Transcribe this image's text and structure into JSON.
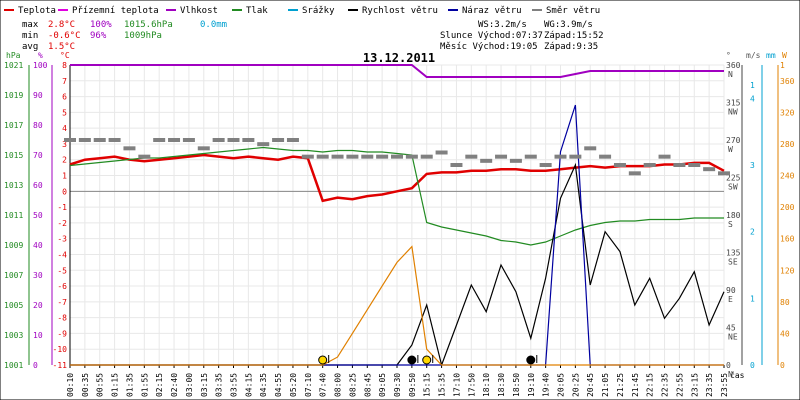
{
  "chart_data": {
    "type": "line",
    "title": "13.12.2011",
    "legend": [
      {
        "label": "Teplota",
        "color": "#e00000"
      },
      {
        "label": "Přízemní teplota",
        "color": "#e000e0"
      },
      {
        "label": "Vlhkost",
        "color": "#a000c0"
      },
      {
        "label": "Tlak",
        "color": "#228b22"
      },
      {
        "label": "Srážky",
        "color": "#00a0d0"
      },
      {
        "label": "Rychlost větru",
        "color": "#000000"
      },
      {
        "label": "Náraz větru",
        "color": "#0000a0"
      },
      {
        "label": "Směr větru",
        "color": "#808080"
      }
    ],
    "stats": {
      "max_label": "max",
      "max_temp": "2.8°C",
      "max_hum": "100%",
      "max_press": "1015.6hPa",
      "max_rain": "0.0mm",
      "min_label": "min",
      "min_temp": "-0.6°C",
      "min_hum": "96%",
      "min_press": "1009hPa",
      "avg_label": "avg",
      "avg_temp": "1.5°C",
      "ws": "WS:3.2m/s",
      "wg": "WG:3.9m/s",
      "sun": "Slunce Východ:07:37",
      "sun_set": "Západ:15:52",
      "moon": "Měsíc  Východ:19:05",
      "moon_set": "Západ:9:35"
    },
    "axes": {
      "hpa_unit": "hPa",
      "hum_unit": "%",
      "temp_unit": "°C",
      "dir_unit": "°",
      "wind_unit": "m/s",
      "rain_unit": "mm",
      "rain2_unit": "W",
      "x_unit": "čas",
      "pressure_ticks": [
        "1021",
        "1019",
        "1017",
        "1015",
        "1013",
        "1011",
        "1009",
        "1007",
        "1005",
        "1003",
        "1001"
      ],
      "humidity_ticks": [
        "100",
        "90",
        "80",
        "70",
        "60",
        "50",
        "40",
        "30",
        "20",
        "10",
        "0"
      ],
      "temp_ticks": [
        "8",
        "7",
        "6",
        "5",
        "4",
        "3",
        "2",
        "1",
        "0",
        "-1",
        "-2",
        "-3",
        "-4",
        "-5",
        "-6",
        "-7",
        "-8",
        "-9",
        "-10",
        "-11"
      ],
      "dir_ticks": [
        "360",
        "315",
        "270",
        "225",
        "180",
        "135",
        "90",
        "45",
        "0"
      ],
      "dir_letters": [
        "N",
        "NW",
        "W",
        "SW",
        "S",
        "SE",
        "E",
        "NE",
        "N"
      ],
      "wind_ticks": [
        "1",
        "4",
        "3",
        "2",
        "1",
        "0"
      ],
      "rain_ticks": [
        "1",
        "360",
        "320",
        "280",
        "240",
        "200",
        "160",
        "120",
        "80",
        "40",
        "0"
      ],
      "x_ticks": [
        "00:10",
        "00:35",
        "00:55",
        "01:15",
        "01:35",
        "01:55",
        "02:15",
        "02:40",
        "03:00",
        "03:15",
        "03:35",
        "03:55",
        "04:15",
        "04:35",
        "04:55",
        "05:20",
        "07:10",
        "07:40",
        "08:00",
        "08:25",
        "08:45",
        "09:05",
        "09:30",
        "09:50",
        "15:15",
        "15:35",
        "17:10",
        "17:50",
        "18:10",
        "18:30",
        "18:50",
        "19:10",
        "19:40",
        "20:05",
        "20:25",
        "20:45",
        "21:05",
        "21:25",
        "21:45",
        "22:15",
        "22:35",
        "22:55",
        "23:15",
        "23:35",
        "23:55"
      ]
    },
    "series": [
      {
        "name": "Teplota",
        "unit": "°C",
        "values": [
          1.7,
          2.0,
          2.1,
          2.2,
          2.0,
          1.9,
          2.0,
          2.1,
          2.2,
          2.3,
          2.2,
          2.1,
          2.2,
          2.1,
          2.0,
          2.2,
          2.1,
          -0.6,
          -0.4,
          -0.5,
          -0.3,
          -0.2,
          0.0,
          0.2,
          1.1,
          1.2,
          1.2,
          1.3,
          1.3,
          1.4,
          1.4,
          1.3,
          1.3,
          1.4,
          1.5,
          1.6,
          1.5,
          1.6,
          1.6,
          1.6,
          1.7,
          1.7,
          1.8,
          1.8,
          1.3
        ]
      },
      {
        "name": "Vlhkost",
        "unit": "%",
        "values": [
          100,
          100,
          100,
          100,
          100,
          100,
          100,
          100,
          100,
          100,
          100,
          100,
          100,
          100,
          100,
          100,
          100,
          100,
          100,
          100,
          100,
          100,
          100,
          100,
          96,
          96,
          96,
          96,
          96,
          96,
          96,
          96,
          96,
          96,
          97,
          98,
          98,
          98,
          98,
          98,
          98,
          98,
          98,
          98,
          98
        ]
      },
      {
        "name": "Tlak",
        "unit": "hPa",
        "values": [
          1014.3,
          1014.4,
          1014.5,
          1014.6,
          1014.7,
          1014.8,
          1014.8,
          1014.9,
          1015.0,
          1015.1,
          1015.2,
          1015.3,
          1015.4,
          1015.5,
          1015.4,
          1015.3,
          1015.3,
          1015.2,
          1015.3,
          1015.3,
          1015.2,
          1015.2,
          1015.1,
          1015.0,
          1010.5,
          1010.2,
          1010.0,
          1009.8,
          1009.6,
          1009.3,
          1009.2,
          1009.0,
          1009.2,
          1009.6,
          1010.0,
          1010.3,
          1010.5,
          1010.6,
          1010.6,
          1010.7,
          1010.7,
          1010.7,
          1010.8,
          1010.8,
          1010.8
        ]
      },
      {
        "name": "Rychlost větru",
        "unit": "m/s",
        "values": [
          0,
          0,
          0,
          0,
          0,
          0,
          0,
          0,
          0,
          0,
          0,
          0,
          0,
          0,
          0,
          0,
          0,
          0,
          0,
          0,
          0,
          0,
          0,
          0.3,
          0.9,
          0.0,
          0.6,
          1.2,
          0.8,
          1.5,
          1.1,
          0.4,
          1.3,
          2.5,
          3.0,
          1.2,
          2.0,
          1.7,
          0.9,
          1.3,
          0.7,
          1.0,
          1.4,
          0.6,
          1.1
        ]
      },
      {
        "name": "Náraz větru",
        "unit": "m/s",
        "values": [
          0,
          0,
          0,
          0,
          0,
          0,
          0,
          0,
          0,
          0,
          0,
          0,
          0,
          0,
          0,
          0,
          0,
          0,
          0,
          0,
          0,
          0,
          0,
          0,
          0,
          0,
          0,
          0,
          0,
          0,
          0,
          0,
          0,
          3.2,
          3.9,
          0,
          0,
          0,
          0,
          0,
          0,
          0,
          0,
          0,
          0
        ]
      },
      {
        "name": "Srážky",
        "unit": "W",
        "values": [
          0,
          0,
          0,
          0,
          0,
          0,
          0,
          0,
          0,
          0,
          0,
          0,
          0,
          0,
          0,
          0,
          0,
          0,
          10,
          40,
          70,
          100,
          130,
          150,
          20,
          0,
          0,
          0,
          0,
          0,
          0,
          0,
          0,
          0,
          0,
          0,
          0,
          0,
          0,
          0,
          0,
          0,
          0,
          0,
          0
        ]
      },
      {
        "name": "Směr větru",
        "unit": "°",
        "values": [
          270,
          270,
          270,
          270,
          260,
          250,
          270,
          270,
          270,
          260,
          270,
          270,
          270,
          265,
          270,
          270,
          250,
          250,
          250,
          250,
          250,
          250,
          250,
          250,
          250,
          255,
          240,
          250,
          245,
          250,
          245,
          250,
          240,
          250,
          250,
          260,
          250,
          240,
          230,
          240,
          250,
          240,
          240,
          235,
          230
        ]
      }
    ],
    "markers": [
      {
        "kind": "sunrise",
        "label": "07:37"
      },
      {
        "kind": "sunset",
        "label": "15:52"
      },
      {
        "kind": "moonrise",
        "label": "19:05"
      },
      {
        "kind": "moonset",
        "label": "9:35"
      }
    ]
  }
}
